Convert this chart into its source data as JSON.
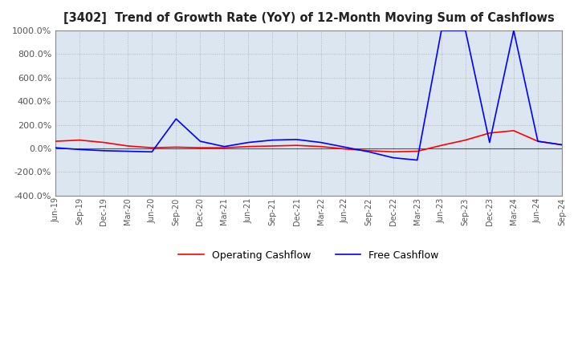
{
  "title": "[3402]  Trend of Growth Rate (YoY) of 12-Month Moving Sum of Cashflows",
  "ylim": [
    -400,
    1000
  ],
  "yticks": [
    -400,
    -200,
    0,
    200,
    400,
    600,
    800,
    1000
  ],
  "background_color": "#ffffff",
  "plot_bg_color": "#dce6f1",
  "grid_color": "#aaaaaa",
  "legend_entries": [
    "Operating Cashflow",
    "Free Cashflow"
  ],
  "legend_colors": [
    "#ff0000",
    "#0000ff"
  ],
  "x_labels": [
    "Jun-19",
    "Sep-19",
    "Dec-19",
    "Mar-20",
    "Jun-20",
    "Sep-20",
    "Dec-20",
    "Mar-21",
    "Jun-21",
    "Sep-21",
    "Dec-21",
    "Mar-22",
    "Jun-22",
    "Sep-22",
    "Dec-22",
    "Mar-23",
    "Jun-23",
    "Sep-23",
    "Dec-23",
    "Mar-24",
    "Jun-24",
    "Sep-24"
  ],
  "operating_cashflow": [
    60,
    70,
    50,
    20,
    5,
    10,
    5,
    5,
    15,
    20,
    25,
    15,
    -5,
    -20,
    -30,
    -25,
    25,
    70,
    130,
    150,
    60,
    30
  ],
  "free_cashflow": [
    5,
    -10,
    -20,
    -25,
    -30,
    250,
    60,
    15,
    50,
    70,
    75,
    50,
    10,
    -30,
    -80,
    -100,
    1000,
    1000,
    50,
    1000,
    60,
    30
  ]
}
